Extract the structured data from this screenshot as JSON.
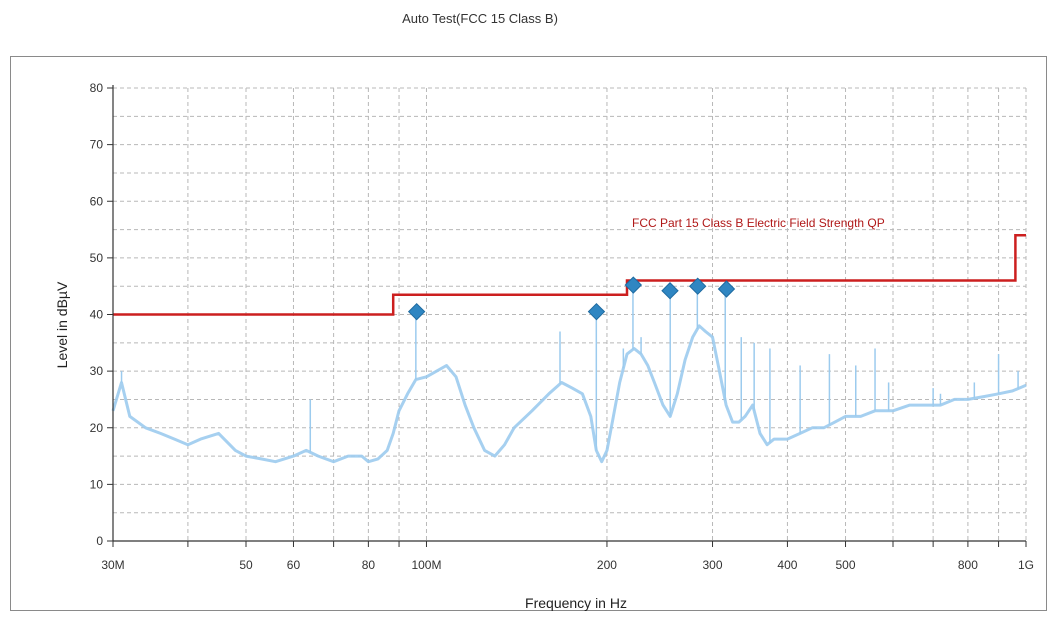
{
  "chart_data": {
    "type": "line",
    "title": "Auto Test(FCC 15 Class B)",
    "xlabel": "Frequency in Hz",
    "ylabel": "Level in dBµV",
    "x_scale": "log",
    "xlim": [
      30,
      1000
    ],
    "ylim": [
      0,
      80
    ],
    "grid": true,
    "y_ticks": [
      "0",
      "10",
      "20",
      "30",
      "40",
      "50",
      "60",
      "70",
      "80"
    ],
    "y_tick_values": [
      0,
      10,
      20,
      30,
      40,
      50,
      60,
      70,
      80
    ],
    "x_ticks": [
      {
        "value": 30,
        "label": "30M"
      },
      {
        "value": 50,
        "label": "50"
      },
      {
        "value": 60,
        "label": "60"
      },
      {
        "value": 80,
        "label": "80"
      },
      {
        "value": 100,
        "label": "100M"
      },
      {
        "value": 200,
        "label": "200"
      },
      {
        "value": 300,
        "label": "300"
      },
      {
        "value": 400,
        "label": "400"
      },
      {
        "value": 500,
        "label": "500"
      },
      {
        "value": 800,
        "label": "800"
      },
      {
        "value": 1000,
        "label": "1G"
      }
    ],
    "x_minor_ticks": [
      40,
      70,
      90,
      600,
      700,
      900
    ],
    "series": [
      {
        "name": "FCC Part 15 Class B Electric Field Strength QP",
        "color": "#cc1f1f",
        "style": "step",
        "x": [
          30,
          88,
          88,
          216,
          216,
          960,
          960,
          1000
        ],
        "y": [
          40,
          40,
          43.5,
          43.5,
          46,
          46,
          54,
          54
        ]
      },
      {
        "color": "#9ccbee",
        "style": "spectrum",
        "x": [
          30,
          31,
          32,
          34,
          36,
          38,
          40,
          42,
          45,
          48,
          50,
          53,
          56,
          60,
          63,
          66,
          70,
          74,
          78,
          80,
          83,
          86,
          88,
          90,
          93,
          96,
          100,
          104,
          108,
          112,
          116,
          120,
          125,
          130,
          135,
          140,
          150,
          160,
          168,
          175,
          182,
          188,
          192,
          196,
          200,
          205,
          210,
          216,
          222,
          228,
          234,
          240,
          248,
          255,
          262,
          270,
          278,
          285,
          292,
          300,
          308,
          316,
          324,
          332,
          340,
          350,
          360,
          370,
          380,
          390,
          400,
          420,
          440,
          460,
          480,
          500,
          530,
          560,
          600,
          640,
          680,
          720,
          760,
          800,
          850,
          900,
          950,
          1000
        ],
        "y": [
          23,
          28,
          22,
          20,
          19,
          18,
          17,
          18,
          19,
          16,
          15,
          14.5,
          14,
          15,
          16,
          15,
          14,
          15,
          15,
          14,
          14.5,
          16,
          19,
          23,
          26,
          28.5,
          29,
          30,
          31,
          29,
          24,
          20,
          16,
          15,
          17,
          20,
          23,
          26,
          28,
          27,
          26,
          22,
          16,
          14,
          16,
          22,
          28,
          33,
          34,
          33,
          31,
          28,
          24,
          22,
          26,
          32,
          36,
          38,
          37,
          36,
          30,
          24,
          21,
          21,
          22,
          24,
          19,
          17,
          18,
          18,
          18,
          19,
          20,
          20,
          21,
          22,
          22,
          23,
          23,
          24,
          24,
          24,
          25,
          25,
          25.5,
          26,
          26.5,
          27.5
        ]
      }
    ],
    "spikes": [
      {
        "x": 31,
        "y": 30
      },
      {
        "x": 64,
        "y": 25
      },
      {
        "x": 96,
        "y": 40
      },
      {
        "x": 167,
        "y": 37
      },
      {
        "x": 192,
        "y": 40
      },
      {
        "x": 213,
        "y": 34
      },
      {
        "x": 221,
        "y": 45
      },
      {
        "x": 228,
        "y": 36
      },
      {
        "x": 255,
        "y": 43
      },
      {
        "x": 283,
        "y": 44
      },
      {
        "x": 315,
        "y": 44
      },
      {
        "x": 335,
        "y": 36
      },
      {
        "x": 352,
        "y": 35
      },
      {
        "x": 374,
        "y": 34
      },
      {
        "x": 420,
        "y": 31
      },
      {
        "x": 470,
        "y": 33
      },
      {
        "x": 520,
        "y": 31
      },
      {
        "x": 560,
        "y": 34
      },
      {
        "x": 590,
        "y": 28
      },
      {
        "x": 700,
        "y": 27
      },
      {
        "x": 720,
        "y": 26
      },
      {
        "x": 820,
        "y": 28
      },
      {
        "x": 900,
        "y": 33
      },
      {
        "x": 970,
        "y": 30
      }
    ],
    "markers": {
      "color": "#2f86c2",
      "shape": "diamond",
      "points": [
        {
          "x": 96.3,
          "y": 40.5
        },
        {
          "x": 192.1,
          "y": 40.5
        },
        {
          "x": 221.3,
          "y": 45.2
        },
        {
          "x": 254.8,
          "y": 44.2
        },
        {
          "x": 283.4,
          "y": 45.0
        },
        {
          "x": 316.5,
          "y": 44.5
        }
      ]
    },
    "limit_label": "FCC Part 15 Class B Electric Field Strength QP",
    "limit_color": "#cc1f1f",
    "trace_color": "#9ccbee"
  }
}
